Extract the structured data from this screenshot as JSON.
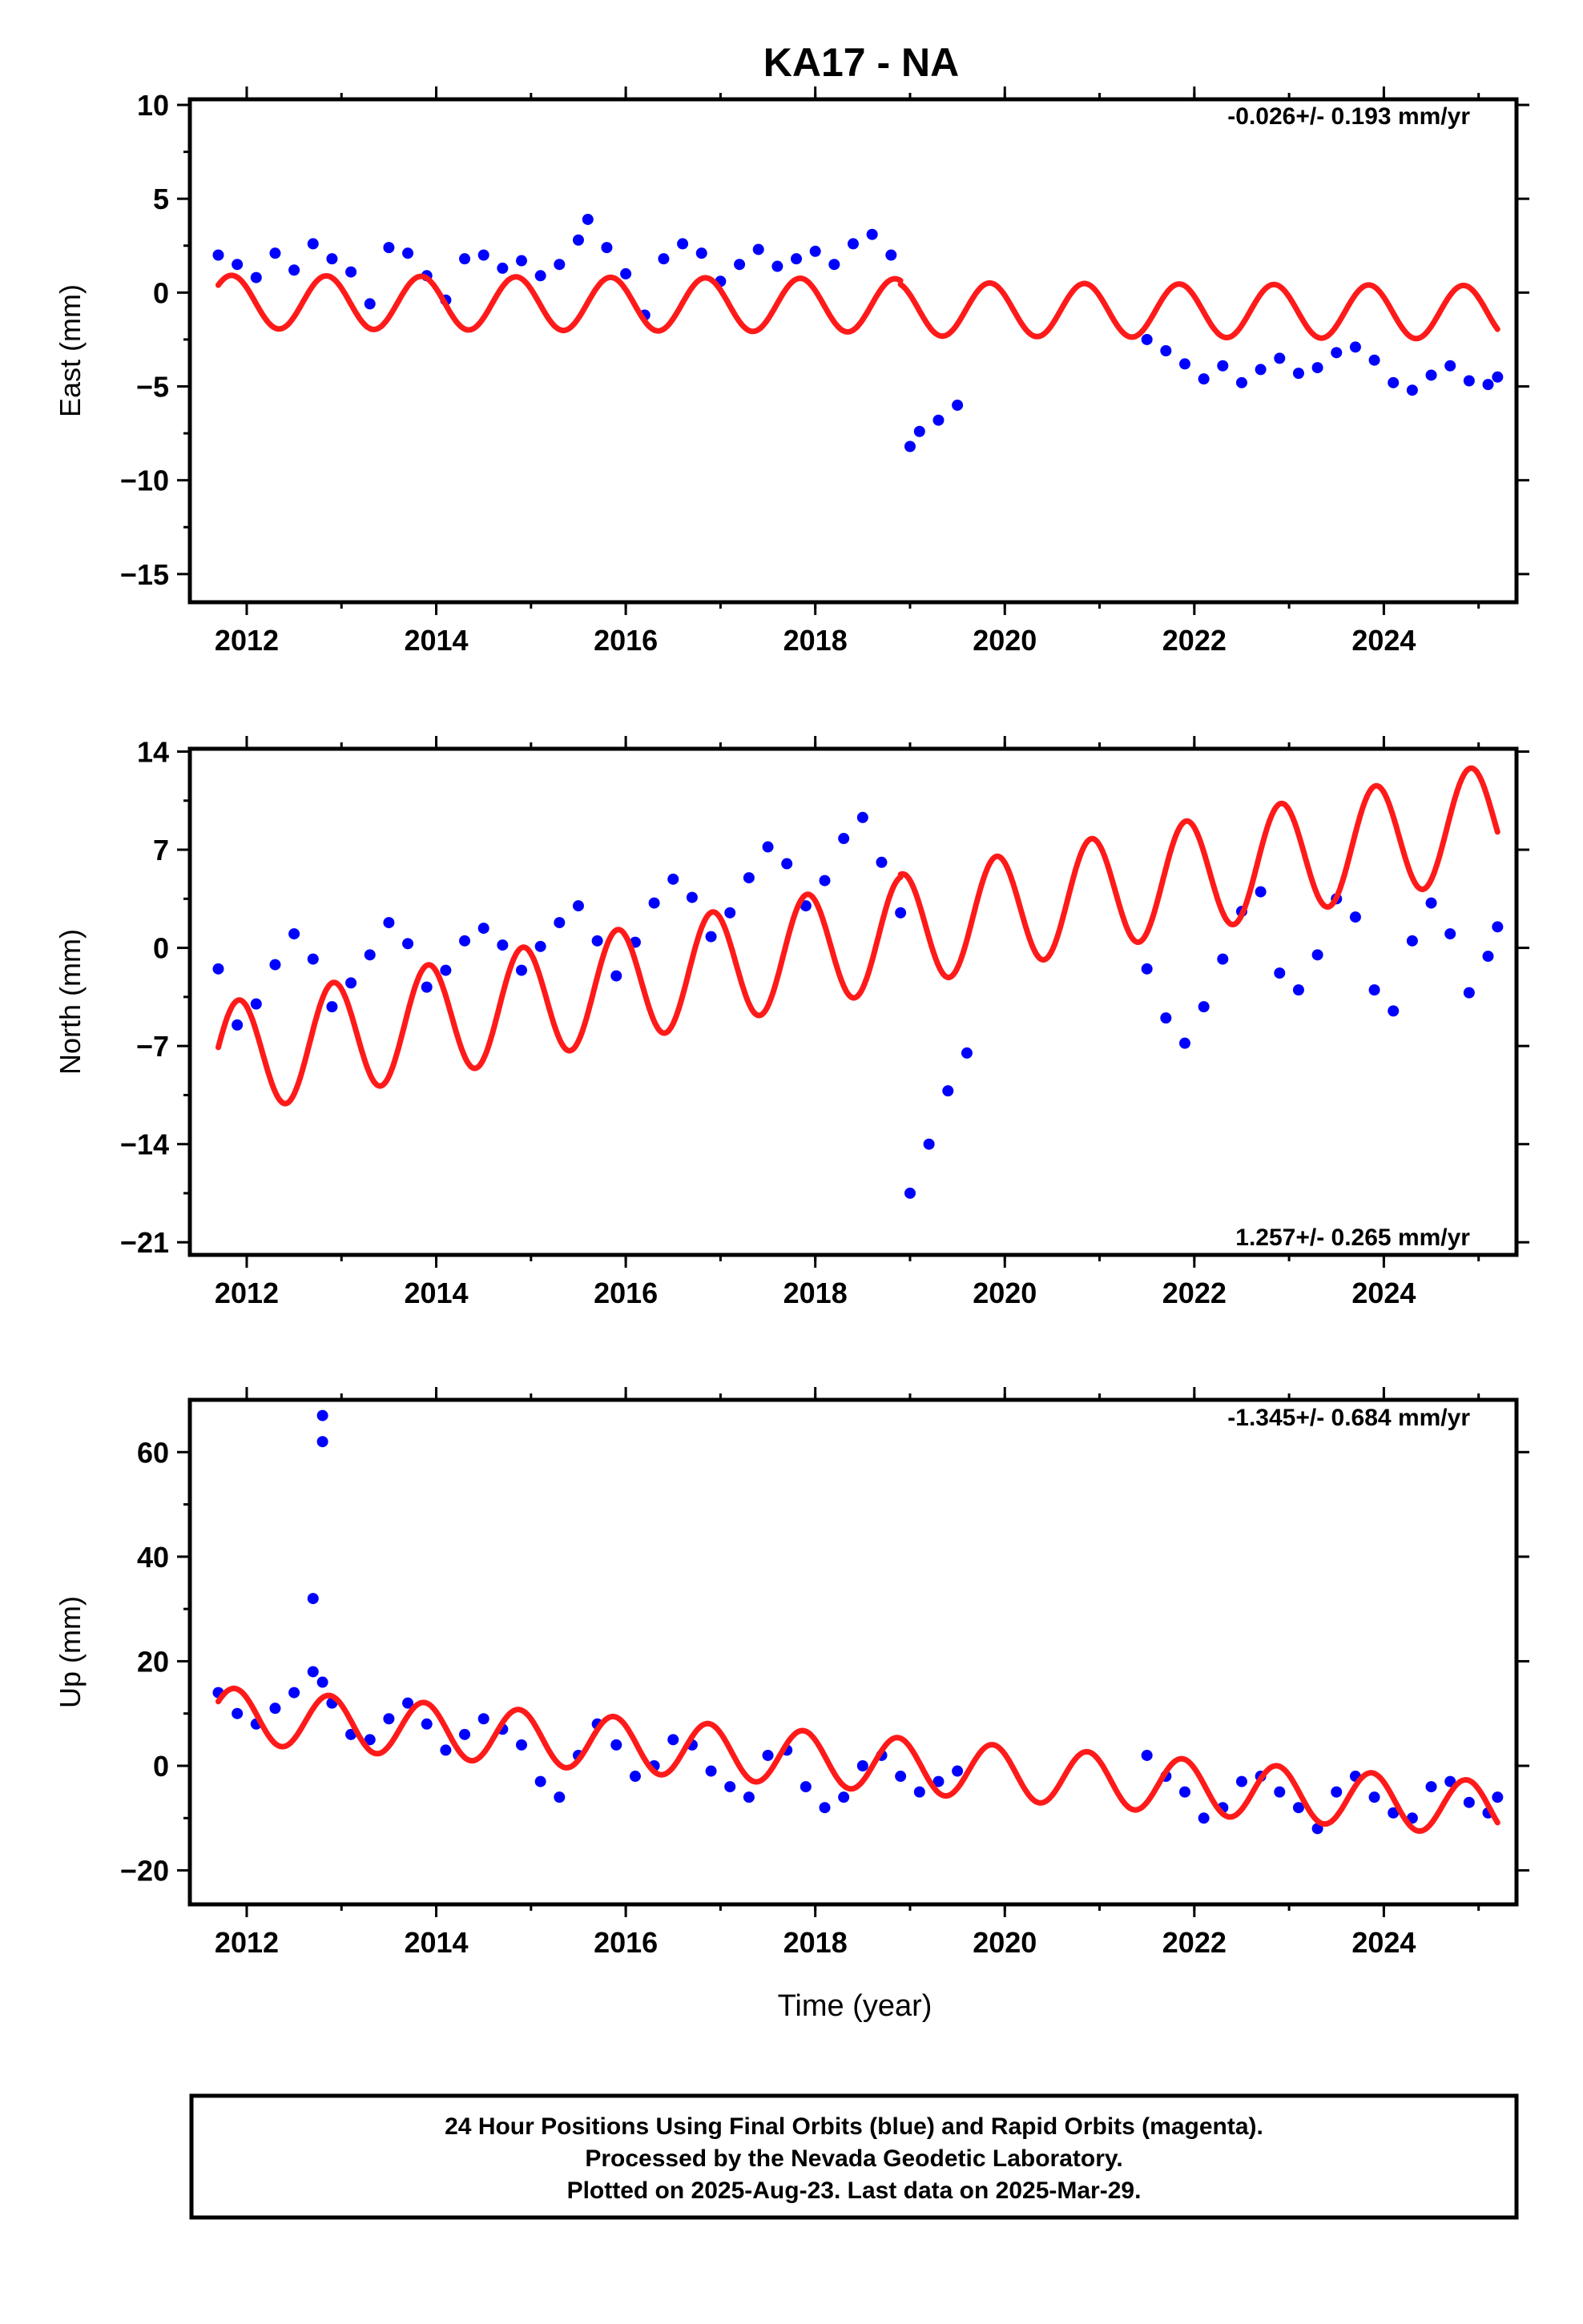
{
  "figure": {
    "title": "KA17 - NA",
    "xlabel": "Time (year)",
    "caption": [
      "24 Hour Positions Using Final Orbits (blue) and Rapid Orbits (magenta).",
      "Processed by the Nevada Geodetic Laboratory.",
      "Plotted on 2025-Aug-23. Last data on 2025-Mar-29."
    ],
    "colors": {
      "final_orbits": "#0000ff",
      "model": "#ff1a1a",
      "frame": "#000000"
    }
  },
  "chart_data": [
    {
      "type": "scatter",
      "ylabel": "East (mm)",
      "rate_label": "-0.026+/- 0.193 mm/yr",
      "xlim": [
        2011.4,
        2025.4
      ],
      "ylim": [
        -16.5,
        10.3
      ],
      "xticks": [
        2012,
        2014,
        2016,
        2018,
        2020,
        2022,
        2024
      ],
      "yticks": [
        10,
        5,
        0,
        -5,
        -10,
        -15
      ],
      "grid": false,
      "series": [
        {
          "kind": "points",
          "x": [
            2011.7,
            2011.9,
            2012.1,
            2012.3,
            2012.5,
            2012.7,
            2012.9,
            2013.1,
            2013.3,
            2013.5,
            2013.7,
            2013.9,
            2014.1,
            2014.3,
            2014.5,
            2014.7,
            2014.9,
            2015.1,
            2015.3,
            2015.5,
            2015.6,
            2015.8,
            2016.0,
            2016.2,
            2016.4,
            2016.6,
            2016.8,
            2017.0,
            2017.2,
            2017.4,
            2017.6,
            2017.8,
            2018.0,
            2018.2,
            2018.4,
            2018.6,
            2018.8,
            2019.0,
            2019.1,
            2019.3,
            2019.5,
            2021.5,
            2021.7,
            2021.9,
            2022.1,
            2022.3,
            2022.5,
            2022.7,
            2022.9,
            2023.1,
            2023.3,
            2023.5,
            2023.7,
            2023.9,
            2024.1,
            2024.3,
            2024.5,
            2024.7,
            2024.9,
            2025.1,
            2025.2
          ],
          "y": [
            2.0,
            1.5,
            0.8,
            2.1,
            1.2,
            2.6,
            1.8,
            1.1,
            -0.6,
            2.4,
            2.1,
            0.9,
            -0.4,
            1.8,
            2.0,
            1.3,
            1.7,
            0.9,
            1.5,
            2.8,
            3.9,
            2.4,
            1.0,
            -1.2,
            1.8,
            2.6,
            2.1,
            0.6,
            1.5,
            2.3,
            1.4,
            1.8,
            2.2,
            1.5,
            2.6,
            3.1,
            2.0,
            -8.2,
            -7.4,
            -6.8,
            -6.0,
            -2.5,
            -3.1,
            -3.8,
            -4.6,
            -3.9,
            -4.8,
            -4.1,
            -3.5,
            -4.3,
            -4.0,
            -3.2,
            -2.9,
            -3.6,
            -4.8,
            -5.2,
            -4.4,
            -3.9,
            -4.7,
            -4.9,
            -4.5
          ]
        },
        {
          "kind": "model",
          "period": 1.0,
          "breaks": [
            2018.9
          ],
          "segments": [
            {
              "x0": 2011.7,
              "x1": 2018.9,
              "offset": -0.5,
              "slope": -0.026,
              "ref": 2011.7,
              "cos": 0.9,
              "sin": 1.1
            },
            {
              "x0": 2018.9,
              "x1": 2025.2,
              "offset": -0.7,
              "slope": -0.026,
              "ref": 2011.7,
              "cos": 0.9,
              "sin": 1.1
            }
          ]
        }
      ]
    },
    {
      "type": "scatter",
      "ylabel": "North (mm)",
      "rate_label": "1.257+/- 0.265 mm/yr",
      "xlim": [
        2011.4,
        2025.4
      ],
      "ylim": [
        -21.9,
        14.2
      ],
      "xticks": [
        2012,
        2014,
        2016,
        2018,
        2020,
        2022,
        2024
      ],
      "yticks": [
        14,
        7,
        0,
        -7,
        -14,
        -21
      ],
      "grid": false,
      "series": [
        {
          "kind": "points",
          "x": [
            2011.7,
            2011.9,
            2012.1,
            2012.3,
            2012.5,
            2012.7,
            2012.9,
            2013.1,
            2013.3,
            2013.5,
            2013.7,
            2013.9,
            2014.1,
            2014.3,
            2014.5,
            2014.7,
            2014.9,
            2015.1,
            2015.3,
            2015.5,
            2015.7,
            2015.9,
            2016.1,
            2016.3,
            2016.5,
            2016.7,
            2016.9,
            2017.1,
            2017.3,
            2017.5,
            2017.7,
            2017.9,
            2018.1,
            2018.3,
            2018.5,
            2018.7,
            2018.9,
            2019.0,
            2019.2,
            2019.4,
            2019.6,
            2021.5,
            2021.7,
            2021.9,
            2022.1,
            2022.3,
            2022.5,
            2022.7,
            2022.9,
            2023.1,
            2023.3,
            2023.5,
            2023.7,
            2023.9,
            2024.1,
            2024.3,
            2024.5,
            2024.7,
            2024.9,
            2025.1,
            2025.2
          ],
          "y": [
            -1.5,
            -5.5,
            -4.0,
            -1.2,
            1.0,
            -0.8,
            -4.2,
            -2.5,
            -0.5,
            1.8,
            0.3,
            -2.8,
            -1.6,
            0.5,
            1.4,
            0.2,
            -1.6,
            0.1,
            1.8,
            3.0,
            0.5,
            -2.0,
            0.4,
            3.2,
            4.9,
            3.6,
            0.8,
            2.5,
            5.0,
            7.2,
            6.0,
            3.0,
            4.8,
            7.8,
            9.3,
            6.1,
            2.5,
            -17.5,
            -14.0,
            -10.2,
            -7.5,
            -1.5,
            -5.0,
            -6.8,
            -4.2,
            -0.8,
            2.6,
            4.0,
            -1.8,
            -3.0,
            -0.5,
            3.5,
            2.2,
            -3.0,
            -4.5,
            0.5,
            3.2,
            1.0,
            -3.2,
            -0.6,
            1.5
          ]
        },
        {
          "kind": "model",
          "period": 1.0,
          "breaks": [
            2018.9
          ],
          "segments": [
            {
              "x0": 2011.7,
              "x1": 2018.9,
              "offset": -8.0,
              "slope": 1.257,
              "ref": 2011.7,
              "cos": 0.9,
              "sin": 3.9
            },
            {
              "x0": 2018.9,
              "x1": 2025.2,
              "offset": -7.8,
              "slope": 1.257,
              "ref": 2011.7,
              "cos": 0.9,
              "sin": 3.9
            }
          ]
        }
      ]
    },
    {
      "type": "scatter",
      "ylabel": "Up (mm)",
      "rate_label": "-1.345+/- 0.684 mm/yr",
      "xlim": [
        2011.4,
        2025.4
      ],
      "ylim": [
        -26.5,
        70.0
      ],
      "xticks": [
        2012,
        2014,
        2016,
        2018,
        2020,
        2022,
        2024
      ],
      "yticks": [
        60,
        40,
        20,
        0,
        -20
      ],
      "grid": false,
      "series": [
        {
          "kind": "points",
          "x": [
            2011.7,
            2011.9,
            2012.1,
            2012.3,
            2012.5,
            2012.7,
            2012.8,
            2012.9,
            2013.1,
            2013.3,
            2013.5,
            2013.7,
            2013.9,
            2014.1,
            2014.3,
            2014.5,
            2014.7,
            2014.9,
            2015.1,
            2015.3,
            2015.5,
            2015.7,
            2015.9,
            2016.1,
            2016.3,
            2016.5,
            2016.7,
            2016.9,
            2017.1,
            2017.3,
            2017.5,
            2017.7,
            2017.9,
            2018.1,
            2018.3,
            2018.5,
            2018.7,
            2018.9,
            2019.1,
            2019.3,
            2019.5,
            2021.5,
            2021.7,
            2021.9,
            2022.1,
            2022.3,
            2022.5,
            2022.7,
            2022.9,
            2023.1,
            2023.3,
            2023.5,
            2023.7,
            2023.9,
            2024.1,
            2024.3,
            2024.5,
            2024.7,
            2024.9,
            2025.1,
            2025.2,
            2012.8,
            2012.8,
            2012.7
          ],
          "y": [
            14,
            10,
            8,
            11,
            14,
            18,
            16,
            12,
            6,
            5,
            9,
            12,
            8,
            3,
            6,
            9,
            7,
            4,
            -3,
            -6,
            2,
            8,
            4,
            -2,
            0,
            5,
            4,
            -1,
            -4,
            -6,
            2,
            3,
            -4,
            -8,
            -6,
            0,
            2,
            -2,
            -5,
            -3,
            -1,
            2,
            -2,
            -5,
            -10,
            -8,
            -3,
            -2,
            -5,
            -8,
            -12,
            -5,
            -2,
            -6,
            -9,
            -10,
            -4,
            -3,
            -7,
            -9,
            -6,
            67,
            62,
            32
          ]
        },
        {
          "kind": "model",
          "period": 1.0,
          "breaks": [],
          "segments": [
            {
              "x0": 2011.7,
              "x1": 2025.2,
              "offset": 9.8,
              "slope": -1.345,
              "ref": 2011.7,
              "cos": 2.5,
              "sin": 4.6
            }
          ]
        }
      ]
    }
  ]
}
